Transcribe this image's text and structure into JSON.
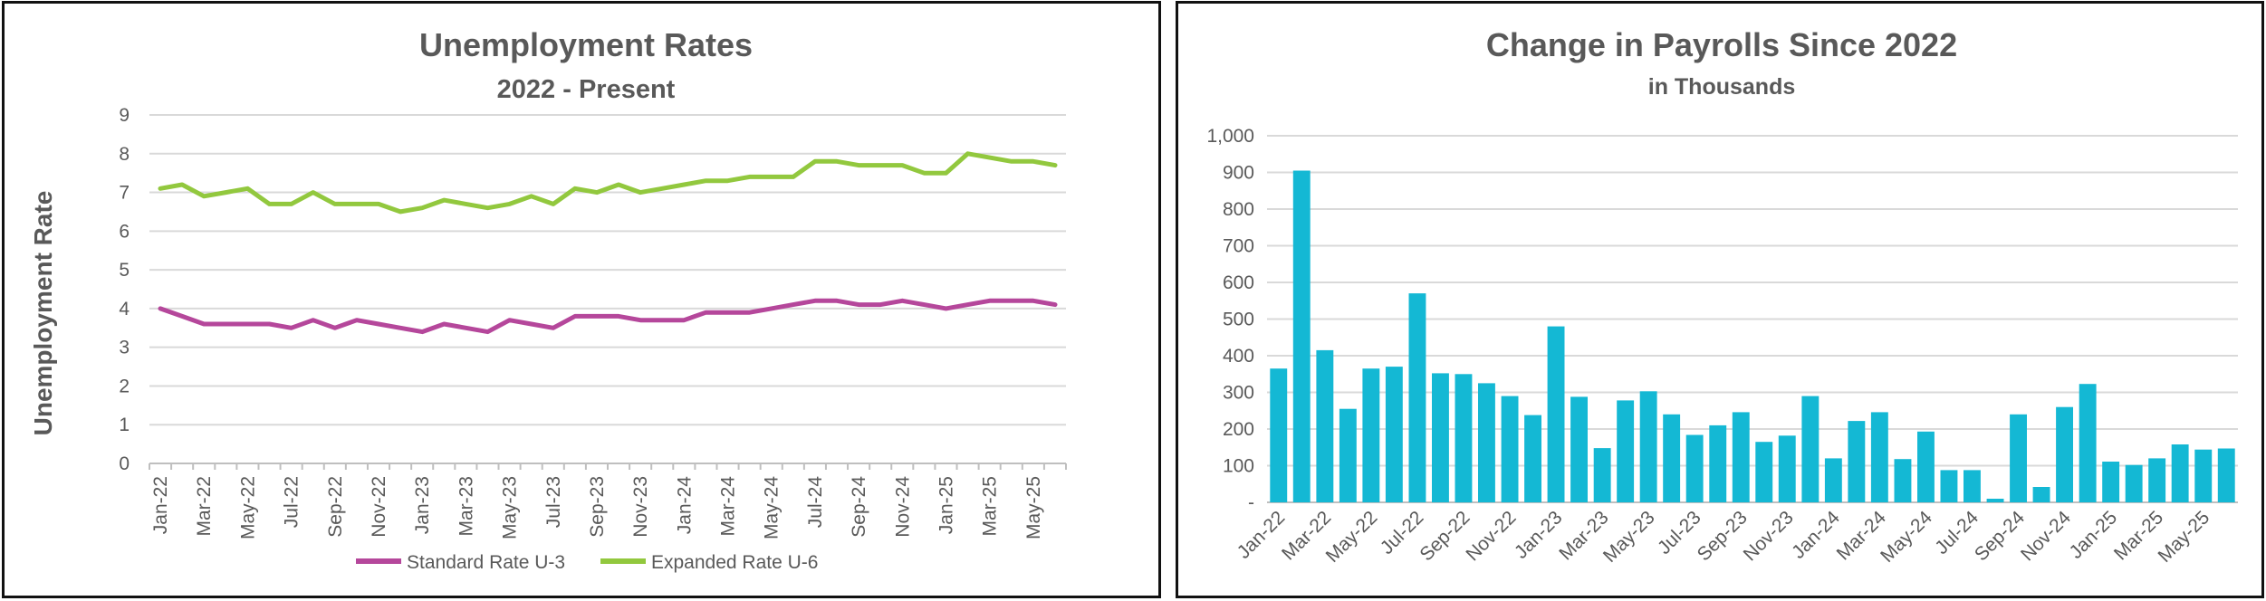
{
  "chart_data": [
    {
      "type": "line",
      "title": "Unemployment Rates",
      "subtitle": "2022 - Present",
      "xlabel": "",
      "ylabel": "Unemployment Rate",
      "ylim": [
        0,
        9
      ],
      "yticks": [
        "0",
        "1",
        "2",
        "3",
        "4",
        "5",
        "6",
        "7",
        "8",
        "9"
      ],
      "grid": true,
      "legend_position": "bottom",
      "x": [
        "Jan-22",
        "Feb-22",
        "Mar-22",
        "Apr-22",
        "May-22",
        "Jun-22",
        "Jul-22",
        "Aug-22",
        "Sep-22",
        "Oct-22",
        "Nov-22",
        "Dec-22",
        "Jan-23",
        "Feb-23",
        "Mar-23",
        "Apr-23",
        "May-23",
        "Jun-23",
        "Jul-23",
        "Aug-23",
        "Sep-23",
        "Oct-23",
        "Nov-23",
        "Dec-23",
        "Jan-24",
        "Feb-24",
        "Mar-24",
        "Apr-24",
        "May-24",
        "Jun-24",
        "Jul-24",
        "Aug-24",
        "Sep-24",
        "Oct-24",
        "Nov-24",
        "Dec-24",
        "Jan-25",
        "Feb-25",
        "Mar-25",
        "Apr-25",
        "May-25",
        "Jun-25"
      ],
      "x_tick_labels": [
        "Jan-22",
        "",
        "Mar-22",
        "",
        "May-22",
        "",
        "Jul-22",
        "",
        "Sep-22",
        "",
        "Nov-22",
        "",
        "Jan-23",
        "",
        "Mar-23",
        "",
        "May-23",
        "",
        "Jul-23",
        "",
        "Sep-23",
        "",
        "Nov-23",
        "",
        "Jan-24",
        "",
        "Mar-24",
        "",
        "May-24",
        "",
        "Jul-24",
        "",
        "Sep-24",
        "",
        "Nov-24",
        "",
        "Jan-25",
        "",
        "Mar-25",
        "",
        "May-25",
        ""
      ],
      "series": [
        {
          "name": "Standard Rate U-3",
          "color": "#b5479b",
          "values": [
            4.0,
            3.8,
            3.6,
            3.6,
            3.6,
            3.6,
            3.5,
            3.7,
            3.5,
            3.7,
            3.6,
            3.5,
            3.4,
            3.6,
            3.5,
            3.4,
            3.7,
            3.6,
            3.5,
            3.8,
            3.8,
            3.8,
            3.7,
            3.7,
            3.7,
            3.9,
            3.9,
            3.9,
            4.0,
            4.1,
            4.2,
            4.2,
            4.1,
            4.1,
            4.2,
            4.1,
            4.0,
            4.1,
            4.2,
            4.2,
            4.2,
            4.1
          ]
        },
        {
          "name": "Expanded Rate U-6",
          "color": "#92c83e",
          "values": [
            7.1,
            7.2,
            6.9,
            7.0,
            7.1,
            6.7,
            6.7,
            7.0,
            6.7,
            6.7,
            6.7,
            6.5,
            6.6,
            6.8,
            6.7,
            6.6,
            6.7,
            6.9,
            6.7,
            7.1,
            7.0,
            7.2,
            7.0,
            7.1,
            7.2,
            7.3,
            7.3,
            7.4,
            7.4,
            7.4,
            7.8,
            7.8,
            7.7,
            7.7,
            7.7,
            7.5,
            7.5,
            8.0,
            7.9,
            7.8,
            7.8,
            7.7
          ]
        }
      ]
    },
    {
      "type": "bar",
      "title": "Change in Payrolls Since 2022",
      "subtitle": "in Thousands",
      "xlabel": "",
      "ylabel": "",
      "ylim": [
        0,
        1000
      ],
      "yticks": [
        "-",
        "100",
        "200",
        "300",
        "400",
        "500",
        "600",
        "700",
        "800",
        "900",
        "1,000"
      ],
      "grid": true,
      "color": "#14b8d4",
      "categories": [
        "Jan-22",
        "Feb-22",
        "Mar-22",
        "Apr-22",
        "May-22",
        "Jun-22",
        "Jul-22",
        "Aug-22",
        "Sep-22",
        "Oct-22",
        "Nov-22",
        "Dec-22",
        "Jan-23",
        "Feb-23",
        "Mar-23",
        "Apr-23",
        "May-23",
        "Jun-23",
        "Jul-23",
        "Aug-23",
        "Sep-23",
        "Oct-23",
        "Nov-23",
        "Dec-23",
        "Jan-24",
        "Feb-24",
        "Mar-24",
        "Apr-24",
        "May-24",
        "Jun-24",
        "Jul-24",
        "Aug-24",
        "Sep-24",
        "Oct-24",
        "Nov-24",
        "Dec-24",
        "Jan-25",
        "Feb-25",
        "Mar-25",
        "Apr-25",
        "May-25",
        "Jun-25"
      ],
      "x_tick_labels": [
        "Jan-22",
        "",
        "Mar-22",
        "",
        "May-22",
        "",
        "Jul-22",
        "",
        "Sep-22",
        "",
        "Nov-22",
        "",
        "Jan-23",
        "",
        "Mar-23",
        "",
        "May-23",
        "",
        "Jul-23",
        "",
        "Sep-23",
        "",
        "Nov-23",
        "",
        "Jan-24",
        "",
        "Mar-24",
        "",
        "May-24",
        "",
        "Jul-24",
        "",
        "Sep-24",
        "",
        "Nov-24",
        "",
        "Jan-25",
        "",
        "Mar-25",
        "",
        "May-25",
        ""
      ],
      "values": [
        365,
        905,
        415,
        255,
        365,
        370,
        570,
        352,
        350,
        325,
        290,
        238,
        480,
        288,
        148,
        278,
        303,
        240,
        184,
        210,
        246,
        165,
        182,
        290,
        120,
        222,
        246,
        118,
        193,
        88,
        88,
        10,
        240,
        42,
        260,
        323,
        111,
        102,
        120,
        158,
        144,
        147
      ]
    }
  ]
}
